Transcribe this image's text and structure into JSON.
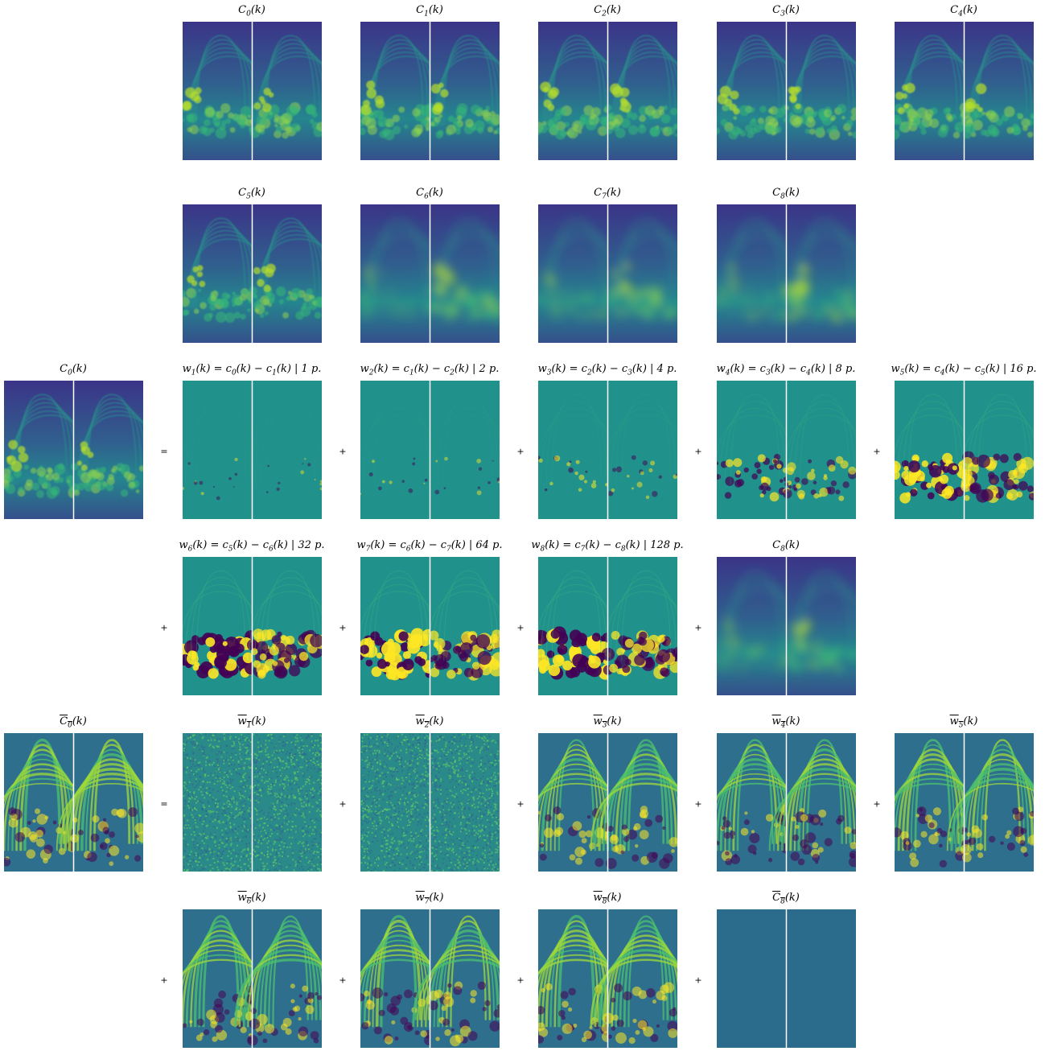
{
  "rows": [
    {
      "panels": [
        {
          "title": "C_0(k)",
          "style": "smooth",
          "scale": 1.0
        },
        {
          "title": "C_1(k)",
          "style": "smooth",
          "scale": 1.0
        },
        {
          "title": "C_2(k)",
          "style": "smooth",
          "scale": 1.0
        },
        {
          "title": "C_3(k)",
          "style": "smooth",
          "scale": 1.0
        },
        {
          "title": "C_4(k)",
          "style": "smooth",
          "scale": 1.0
        }
      ]
    },
    {
      "panels": [
        {
          "title": "C_5(k)",
          "style": "smooth",
          "scale": 1.0
        },
        {
          "title": "C_6(k)",
          "style": "blur",
          "scale": 1.0
        },
        {
          "title": "C_7(k)",
          "style": "blur",
          "scale": 1.0
        },
        {
          "title": "C_8(k)",
          "style": "blur",
          "scale": 1.0
        }
      ]
    },
    {
      "lead": {
        "title": "C_0(k)",
        "style": "smooth"
      },
      "first_op": "=",
      "panels": [
        {
          "title": "w_1(k) = c_0(k) − c_1(k) | 1 p.",
          "style": "detail",
          "scale": 0.15
        },
        {
          "title": "w_2(k) = c_1(k) − c_2(k) | 2 p.",
          "style": "detail",
          "scale": 0.2
        },
        {
          "title": "w_3(k) = c_2(k) − c_3(k) | 4 p.",
          "style": "detail",
          "scale": 0.3
        },
        {
          "title": "w_4(k) = c_3(k) − c_4(k) | 8 p.",
          "style": "detail",
          "scale": 0.6
        },
        {
          "title": "w_5(k) = c_4(k) − c_5(k) | 16 p.",
          "style": "detail",
          "scale": 0.9
        }
      ]
    },
    {
      "first_op": "+",
      "panels": [
        {
          "title": "w_6(k) = c_5(k) − c_6(k) | 32 p.",
          "style": "detail",
          "scale": 1.0
        },
        {
          "title": "w_7(k) = c_6(k) − c_7(k) | 64 p.",
          "style": "detail",
          "scale": 1.0
        },
        {
          "title": "w_8(k) = c_7(k) − c_8(k) | 128 p.",
          "style": "detail",
          "scale": 1.0
        },
        {
          "title": "C_8(k)",
          "style": "blur",
          "scale": 1.0
        }
      ]
    },
    {
      "lead": {
        "title": "C_0(k)",
        "style": "texture",
        "overline": true
      },
      "first_op": "=",
      "panels": [
        {
          "title": "w_1(k)",
          "style": "noise",
          "overline": true,
          "scale": 1.0
        },
        {
          "title": "w_2(k)",
          "style": "noise",
          "overline": true,
          "scale": 1.0
        },
        {
          "title": "w_3(k)",
          "style": "texture",
          "overline": true,
          "scale": 1.0
        },
        {
          "title": "w_4(k)",
          "style": "texture",
          "overline": true,
          "scale": 1.0
        },
        {
          "title": "w_5(k)",
          "style": "texture",
          "overline": true,
          "scale": 1.0
        }
      ]
    },
    {
      "first_op": "+",
      "panels": [
        {
          "title": "w_6(k)",
          "style": "texture",
          "overline": true,
          "scale": 1.0
        },
        {
          "title": "w_7(k)",
          "style": "texture",
          "overline": true,
          "scale": 1.0
        },
        {
          "title": "w_8(k)",
          "style": "texture",
          "overline": true,
          "scale": 1.0
        },
        {
          "title": "C_8(k)",
          "style": "flat",
          "overline": true,
          "scale": 1.0
        }
      ]
    }
  ],
  "op_between": "+",
  "colors": {
    "viridis_low": "#440154",
    "viridis_mid": "#21918c",
    "viridis_high": "#fde725",
    "flat": "#2b6b8c",
    "divider": "#ffffff"
  }
}
